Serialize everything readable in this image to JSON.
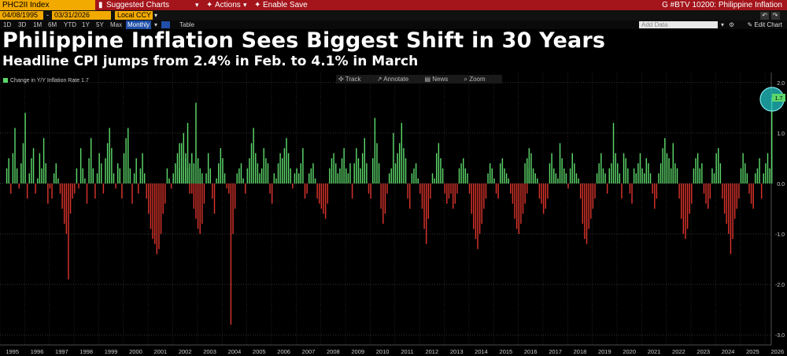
{
  "topbar": {
    "ticker": "PHC2II Index",
    "suggested_charts": "Suggested Charts",
    "actions": "Actions",
    "enable_save": "Enable Save",
    "title": "G #BTV 10200: Philippine Inflation"
  },
  "dates": {
    "start": "04/08/1995",
    "end": "03/31/2026",
    "currency": "Local CCY"
  },
  "ranges": [
    "1D",
    "3D",
    "1M",
    "6M",
    "YTD",
    "1Y",
    "5Y",
    "Max"
  ],
  "frequency": "Monthly",
  "table_label": "Table",
  "add_data_placeholder": "Add Data",
  "edit_chart": "Edit Chart",
  "tools": {
    "track": "Track",
    "annotate": "Annotate",
    "news": "News",
    "zoom": "Zoom"
  },
  "colors": {
    "positive": "#5cd86a",
    "negative": "#d9332b",
    "accent": "#f2a900",
    "highlight": "#22c4c6"
  },
  "chart_data": {
    "type": "bar",
    "title": "Philippine Inflation Sees Biggest Shift in 30 Years",
    "subtitle": "Headline CPI jumps from 2.4% in Feb. to 4.1% in March",
    "legend": {
      "label": "Change in Y/Y Inflation Rate",
      "last_value": "1.7"
    },
    "last_value_label": "1.7",
    "ylim": [
      -3.2,
      2.2
    ],
    "y_ticks": [
      {
        "v": 2.0,
        "label": "2.0"
      },
      {
        "v": 1.0,
        "label": "1.0"
      },
      {
        "v": 0.0,
        "label": "0.0"
      },
      {
        "v": -1.0,
        "label": "-1.0"
      },
      {
        "v": -2.0,
        "label": "-2.0"
      },
      {
        "v": -3.0,
        "label": "-3.0"
      }
    ],
    "x_ticks": [
      "1995",
      "1996",
      "1997",
      "1998",
      "1999",
      "2000",
      "2001",
      "2002",
      "2003",
      "2004",
      "2005",
      "2006",
      "2007",
      "2008",
      "2009",
      "2010",
      "2011",
      "2012",
      "2013",
      "2014",
      "2015",
      "2016",
      "2017",
      "2018",
      "2019",
      "2020",
      "2021",
      "2022",
      "2023",
      "2024",
      "2025",
      "2026"
    ],
    "x_start": 1995.0,
    "x_end": 2026.25,
    "series": [
      {
        "name": "1995",
        "start": 1995.25,
        "values": [
          0.3,
          0.5,
          -0.2,
          0.6,
          1.1,
          0.3,
          -0.1,
          0.4,
          0.8,
          1.4,
          -0.3,
          0.2,
          0.5,
          0.7,
          -0.2,
          0.1,
          0.6,
          0.3,
          0.9,
          0.4,
          -0.4,
          -0.1,
          -0.3,
          0.2,
          0.4,
          0.1,
          -0.2,
          -0.5,
          -0.8,
          -1.0,
          -1.9,
          -0.6,
          -0.3,
          -0.2,
          0.3,
          -0.1,
          0.7,
          0.3,
          0.1,
          -0.4,
          0.5,
          0.9,
          0.3,
          -0.3,
          0.2,
          0.6,
          0.4,
          -0.2,
          0.5,
          0.8,
          1.1,
          0.7,
          0.2,
          -0.1,
          0.4,
          0.3,
          -0.3,
          0.6,
          0.9,
          1.1,
          0.3,
          -0.4,
          0.2,
          0.5,
          -0.2,
          0.3,
          0.6,
          0.2,
          -0.3,
          -0.6,
          -0.9,
          -1.1,
          -1.2,
          -1.4,
          -1.3,
          -1.0,
          -0.6,
          -0.4,
          0.3,
          0.1,
          -0.1,
          0.2,
          0.4,
          0.6,
          0.3,
          0.8,
          1.0,
          0.5,
          0.3,
          -0.2,
          0.6,
          0.4,
          1.6,
          0.5,
          0.3,
          0.2
        ]
      },
      {
        "name": "2002",
        "start": 2002.25,
        "values": [
          0.8,
          0.5,
          0.3,
          0.6,
          1.2,
          0.4,
          -0.2,
          -0.5,
          -0.7,
          -0.9,
          -1.0,
          -0.8,
          -0.4,
          0.2,
          0.6,
          0.3,
          -0.3,
          -0.6,
          0.1,
          0.4,
          0.7,
          0.5,
          0.2,
          -0.1,
          -0.2,
          -2.8,
          -1.0,
          -0.5,
          0.2,
          0.3,
          0.4,
          0.1,
          -0.2,
          0.3,
          0.5,
          0.8,
          1.1,
          0.6,
          0.4,
          0.2,
          0.3,
          0.7,
          0.5,
          0.4,
          -0.2,
          -0.4,
          0.2,
          0.1,
          0.4,
          0.6,
          0.5,
          0.7,
          0.9,
          0.6,
          0.3,
          -0.1,
          0.2,
          0.3,
          0.2,
          0.4,
          0.7,
          -0.3,
          -0.2,
          0.2,
          0.3,
          0.4,
          0.1,
          -0.3,
          -0.4,
          -0.5,
          -0.6,
          -0.7,
          -0.4,
          0.3,
          0.5,
          0.6,
          0.4,
          0.2,
          0.3,
          0.5,
          0.7,
          0.3,
          0.2,
          0.4
        ]
      },
      {
        "name": "2009",
        "start": 2009.25,
        "values": [
          -0.3,
          0.4,
          0.7,
          0.5,
          0.3,
          0.6,
          0.9,
          0.4,
          -0.2,
          -0.3,
          0.5,
          1.3,
          0.8,
          0.4,
          -0.5,
          -0.8,
          -0.6,
          -0.2,
          0.2,
          0.3,
          1.0,
          0.4,
          0.6,
          0.8,
          1.2,
          0.7,
          0.5,
          -0.3,
          -0.5,
          0.2,
          0.3,
          0.4,
          0.1,
          -0.2,
          -0.5,
          -0.9,
          -1.2,
          -0.7,
          -0.3,
          0.2,
          0.1,
          0.6,
          0.8,
          0.5,
          0.3,
          -0.2,
          -0.4,
          -0.3,
          -0.2,
          -0.5,
          -0.4,
          -0.2,
          0.3,
          0.4,
          0.5,
          0.3,
          0.2,
          -0.2,
          -0.6,
          -0.9,
          -1.1,
          -1.3,
          -1.0,
          -0.8,
          -0.5,
          -0.3,
          0.2,
          0.4,
          0.3,
          0.1,
          -0.2,
          -0.3,
          0.4,
          0.5,
          0.3,
          0.2,
          0.1,
          -0.2,
          -0.4,
          -0.7,
          -0.9,
          -1.0,
          -0.8,
          -0.6,
          -0.4,
          -0.2,
          0.3
        ]
      },
      {
        "name": "2016",
        "start": 2016.25,
        "values": [
          0.4,
          0.5,
          0.7,
          0.6,
          0.3,
          0.2,
          0.1,
          -0.3,
          -0.4,
          -0.6,
          -0.5,
          -0.3,
          0.4,
          0.6,
          0.3,
          0.2,
          0.1,
          0.8,
          0.5,
          0.3,
          0.2,
          -0.1,
          0.3,
          0.6,
          0.4,
          0.2,
          0.1,
          -0.3,
          -0.8,
          -1.1,
          -1.2,
          -0.9,
          -0.7,
          -0.5,
          -0.3,
          0.2,
          0.4,
          0.6,
          0.3,
          0.2,
          -0.2,
          0.3,
          0.4,
          1.2,
          0.6,
          0.4,
          0.2,
          -0.3,
          0.6,
          0.5,
          0.3,
          -0.2,
          -0.4,
          0.3,
          0.2,
          0.4,
          0.6,
          0.3,
          0.2,
          0.5,
          0.4,
          0.2,
          -0.2,
          -0.5,
          -0.3,
          0.2,
          0.4,
          0.7,
          0.9,
          0.6,
          0.5,
          0.3,
          0.8,
          0.4,
          0.3,
          -0.3,
          -0.7,
          -1.0,
          -1.1,
          -0.9,
          -0.6,
          -0.4,
          0.3,
          0.5,
          0.6,
          0.3,
          0.4,
          -0.2,
          -0.4,
          -0.5,
          -0.3,
          0.3,
          0.2,
          0.6,
          0.7,
          0.4,
          -0.3,
          -0.6,
          -0.8,
          -1.0,
          -1.4,
          -1.1,
          -0.7,
          -0.5,
          -0.3,
          0.3,
          0.6,
          0.4,
          0.2,
          -0.2,
          -0.4,
          -0.5,
          0.2,
          0.3,
          0.5,
          -0.3,
          0.2,
          0.4,
          0.6,
          0.3,
          1.7
        ]
      }
    ]
  }
}
